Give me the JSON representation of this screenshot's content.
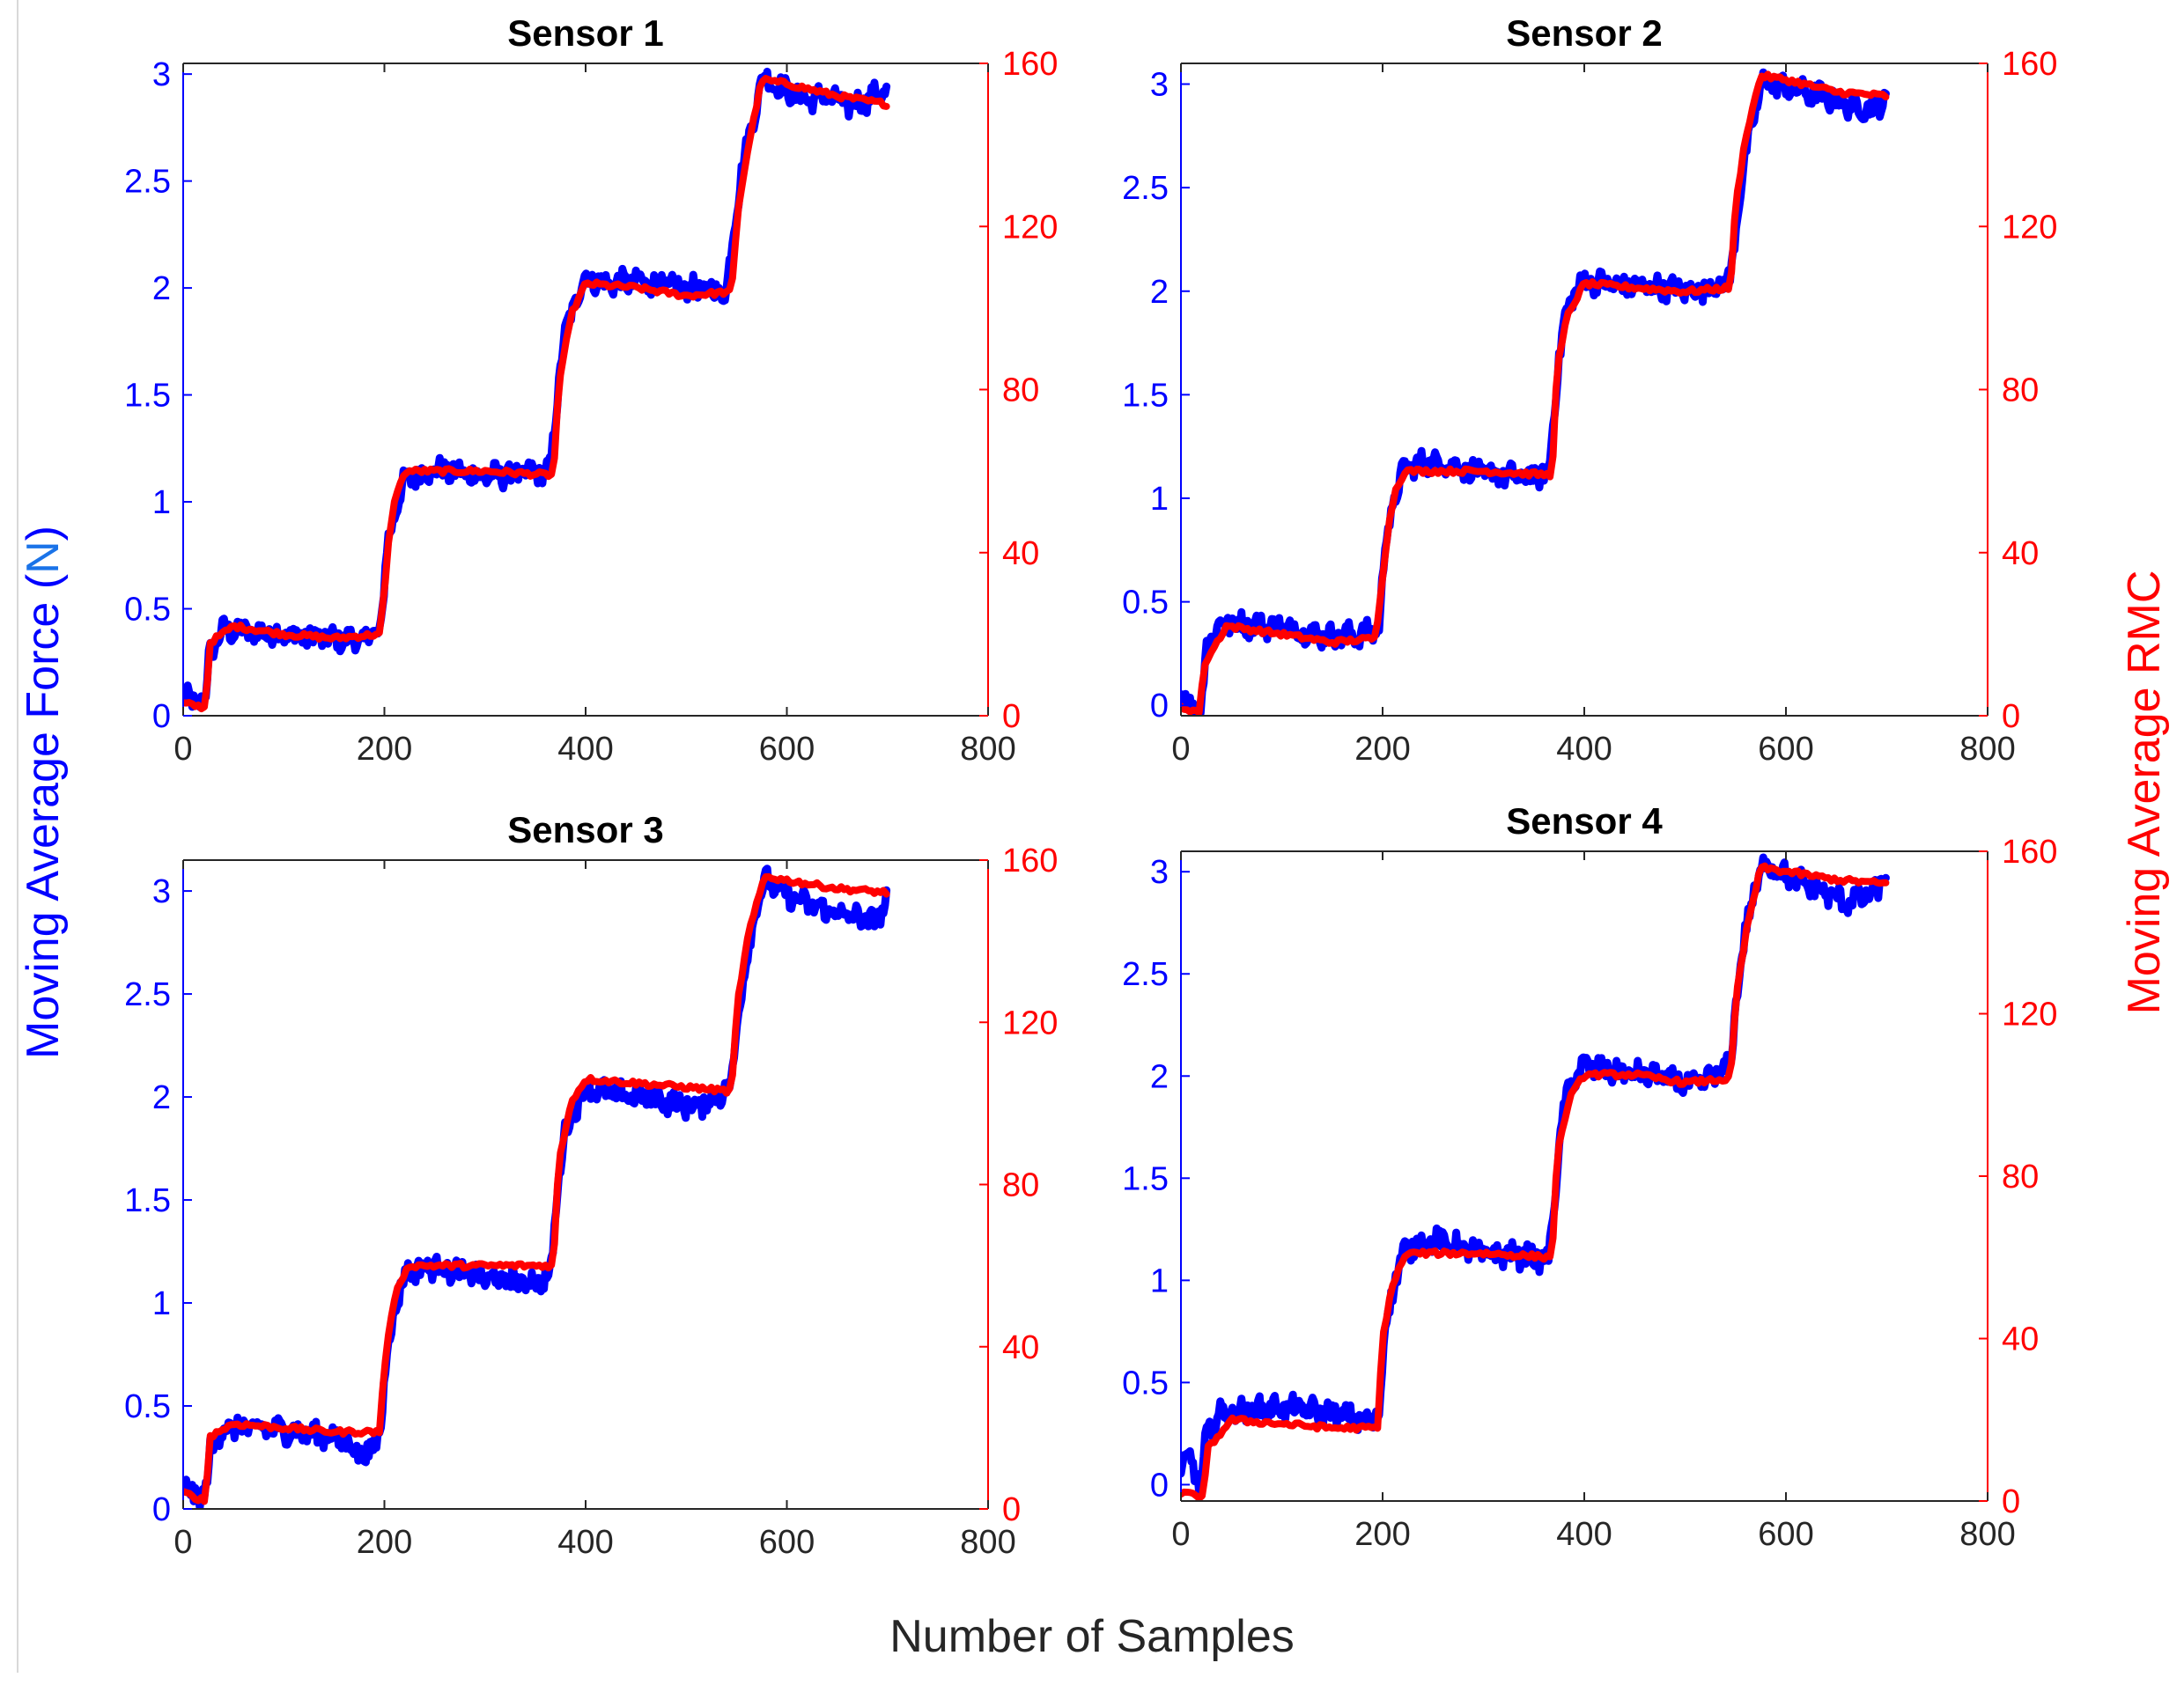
{
  "figure": {
    "xlabel": "Number of Samples",
    "ylabel_left": {
      "main": "Moving Average Force",
      "paren_open": "(",
      "unit": "N",
      "paren_close": ")"
    },
    "ylabel_right": "Moving Average RMC",
    "colors": {
      "left_axis": "#0000ff",
      "unit": "#1a73e8",
      "right_axis": "#ff0000",
      "force_series": "#0000ff",
      "rmc_series": "#ff0000",
      "text": "#262626"
    }
  },
  "chart_data": [
    {
      "type": "line",
      "title": "Sensor 1",
      "xlim": [
        0,
        800
      ],
      "x_ticks": [
        0,
        200,
        400,
        600,
        800
      ],
      "ylim_left": [
        0,
        3.05
      ],
      "y_ticks_left": [
        0,
        0.5,
        1,
        1.5,
        2,
        2.5,
        3
      ],
      "y_tick_labels_left": [
        "0",
        "0.5",
        "1",
        "1.5",
        "2",
        "2.5",
        "3"
      ],
      "ylim_right": [
        0,
        160
      ],
      "y_ticks_right": [
        0,
        40,
        80,
        120,
        160
      ],
      "series": [
        {
          "axis": "left",
          "color": "#0000ff",
          "x": [
            0,
            22,
            26,
            40,
            100,
            150,
            180,
            197,
            203,
            210,
            220,
            250,
            300,
            340,
            365,
            372,
            378,
            390,
            400,
            420,
            450,
            500,
            540,
            548,
            555,
            565,
            575,
            590,
            600,
            620,
            640,
            660,
            680,
            700
          ],
          "y": [
            0.08,
            0.06,
            0.3,
            0.4,
            0.38,
            0.36,
            0.35,
            0.42,
            0.8,
            0.95,
            1.1,
            1.15,
            1.12,
            1.13,
            1.15,
            1.5,
            1.75,
            1.95,
            2.05,
            2.02,
            2.03,
            2.0,
            1.98,
            2.3,
            2.55,
            2.75,
            2.98,
            2.95,
            2.92,
            2.88,
            2.9,
            2.85,
            2.88,
            2.93
          ]
        },
        {
          "axis": "right",
          "color": "#ff0000",
          "x": [
            0,
            22,
            27,
            50,
            100,
            150,
            195,
            200,
            205,
            212,
            222,
            300,
            368,
            373,
            385,
            400,
            450,
            500,
            545,
            552,
            562,
            575,
            600,
            650,
            700
          ],
          "y": [
            3,
            2,
            18,
            22,
            20,
            19,
            20,
            30,
            45,
            55,
            60,
            60,
            59,
            80,
            98,
            106,
            105,
            103,
            104,
            125,
            140,
            156,
            155,
            152,
            150
          ]
        }
      ]
    },
    {
      "type": "line",
      "title": "Sensor 2",
      "xlim": [
        0,
        800
      ],
      "x_ticks": [
        0,
        200,
        400,
        600,
        800
      ],
      "ylim_left": [
        -0.05,
        3.1
      ],
      "y_ticks_left": [
        0,
        0.5,
        1,
        1.5,
        2,
        2.5,
        3
      ],
      "y_tick_labels_left": [
        "0",
        "0.5",
        "1",
        "1.5",
        "2",
        "2.5",
        "3"
      ],
      "ylim_right": [
        0,
        160
      ],
      "y_ticks_right": [
        0,
        40,
        80,
        120,
        160
      ],
      "series": [
        {
          "axis": "left",
          "color": "#0000ff",
          "x": [
            0,
            20,
            25,
            40,
            100,
            150,
            190,
            197,
            203,
            212,
            222,
            250,
            300,
            340,
            365,
            373,
            380,
            390,
            400,
            430,
            470,
            510,
            545,
            552,
            560,
            568,
            578,
            600,
            630,
            660,
            690,
            700
          ],
          "y": [
            0.05,
            -0.04,
            0.3,
            0.4,
            0.38,
            0.33,
            0.35,
            0.4,
            0.8,
            1.0,
            1.15,
            1.18,
            1.12,
            1.1,
            1.12,
            1.6,
            1.85,
            2.0,
            2.05,
            2.03,
            2.02,
            2.0,
            2.05,
            2.4,
            2.65,
            2.85,
            3.02,
            2.98,
            2.95,
            2.9,
            2.88,
            2.95
          ]
        },
        {
          "axis": "right",
          "color": "#ff0000",
          "x": [
            0,
            18,
            24,
            45,
            100,
            150,
            193,
            198,
            205,
            212,
            222,
            300,
            368,
            373,
            383,
            400,
            450,
            500,
            545,
            550,
            560,
            575,
            600,
            650,
            700
          ],
          "y": [
            2,
            1,
            13,
            22,
            20,
            18,
            19,
            30,
            45,
            55,
            60,
            60,
            59,
            85,
            98,
            106,
            105,
            104,
            105,
            125,
            142,
            157,
            156,
            153,
            152
          ]
        }
      ]
    },
    {
      "type": "line",
      "title": "Sensor 3",
      "xlim": [
        0,
        800
      ],
      "x_ticks": [
        0,
        200,
        400,
        600,
        800
      ],
      "ylim_left": [
        0,
        3.15
      ],
      "y_ticks_left": [
        0,
        0.5,
        1,
        1.5,
        2,
        2.5,
        3
      ],
      "y_tick_labels_left": [
        "0",
        "0.5",
        "1",
        "1.5",
        "2",
        "2.5",
        "3"
      ],
      "ylim_right": [
        0,
        160
      ],
      "y_ticks_right": [
        0,
        40,
        80,
        120,
        160
      ],
      "series": [
        {
          "axis": "left",
          "color": "#0000ff",
          "x": [
            0,
            22,
            27,
            45,
            100,
            150,
            185,
            197,
            203,
            212,
            222,
            250,
            300,
            340,
            365,
            372,
            378,
            390,
            400,
            420,
            460,
            510,
            545,
            552,
            560,
            570,
            580,
            600,
            630,
            660,
            690,
            700
          ],
          "y": [
            0.1,
            0.05,
            0.3,
            0.4,
            0.38,
            0.35,
            0.25,
            0.42,
            0.8,
            1.0,
            1.15,
            1.18,
            1.12,
            1.1,
            1.12,
            1.55,
            1.8,
            1.95,
            2.05,
            2.02,
            2.0,
            1.95,
            2.05,
            2.45,
            2.65,
            2.95,
            3.05,
            2.98,
            2.92,
            2.88,
            2.85,
            2.98
          ]
        },
        {
          "axis": "right",
          "color": "#ff0000",
          "x": [
            0,
            22,
            27,
            50,
            100,
            150,
            195,
            200,
            207,
            215,
            225,
            300,
            368,
            373,
            385,
            400,
            450,
            500,
            545,
            551,
            562,
            578,
            600,
            650,
            700
          ],
          "y": [
            4,
            2,
            18,
            21,
            20,
            19,
            19,
            35,
            48,
            56,
            60,
            60,
            60,
            85,
            100,
            106,
            105,
            104,
            103,
            125,
            142,
            156,
            155,
            153,
            152
          ]
        }
      ]
    },
    {
      "type": "line",
      "title": "Sensor 4",
      "xlim": [
        0,
        800
      ],
      "x_ticks": [
        0,
        200,
        400,
        600,
        800
      ],
      "ylim_left": [
        -0.08,
        3.1
      ],
      "y_ticks_left": [
        0,
        0.5,
        1,
        1.5,
        2,
        2.5,
        3
      ],
      "y_tick_labels_left": [
        "0",
        "0.5",
        "1",
        "1.5",
        "2",
        "2.5",
        "3"
      ],
      "ylim_right": [
        0,
        160
      ],
      "y_ticks_right": [
        0,
        40,
        80,
        120,
        160
      ],
      "series": [
        {
          "axis": "left",
          "color": "#0000ff",
          "x": [
            0,
            10,
            20,
            25,
            40,
            100,
            150,
            190,
            197,
            203,
            212,
            222,
            250,
            300,
            340,
            365,
            373,
            380,
            390,
            400,
            430,
            470,
            510,
            545,
            552,
            560,
            568,
            580,
            600,
            630,
            660,
            690,
            700
          ],
          "y": [
            0.05,
            0.15,
            -0.05,
            0.25,
            0.35,
            0.38,
            0.35,
            0.3,
            0.38,
            0.8,
            1.0,
            1.15,
            1.2,
            1.13,
            1.12,
            1.1,
            1.55,
            1.85,
            2.0,
            2.05,
            2.02,
            2.0,
            1.95,
            2.05,
            2.45,
            2.7,
            2.9,
            3.05,
            2.98,
            2.92,
            2.85,
            2.9,
            3.02
          ]
        },
        {
          "axis": "right",
          "color": "#ff0000",
          "x": [
            0,
            22,
            27,
            50,
            100,
            150,
            195,
            200,
            207,
            215,
            225,
            300,
            368,
            373,
            385,
            400,
            450,
            500,
            545,
            551,
            562,
            575,
            600,
            650,
            700
          ],
          "y": [
            2,
            1,
            13,
            20,
            19,
            18,
            18,
            40,
            50,
            57,
            61,
            61,
            60,
            85,
            99,
            105,
            105,
            103,
            104,
            125,
            142,
            156,
            155,
            153,
            152
          ]
        }
      ]
    }
  ]
}
